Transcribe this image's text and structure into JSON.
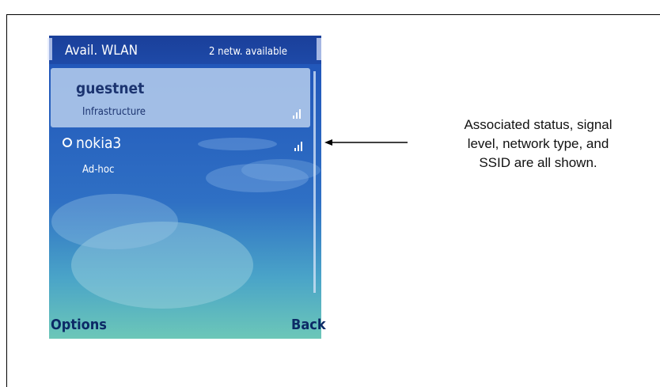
{
  "header": {
    "title": "Avail. WLAN",
    "status": "2 netw. available"
  },
  "networks": [
    {
      "name": "guestnet",
      "type": "Infrastructure"
    },
    {
      "name": "nokia3",
      "type": "Ad-hoc"
    }
  ],
  "softkeys": {
    "left": "Options",
    "right": "Back"
  },
  "annotation": {
    "lines": [
      "Associated status, signal",
      "level, network type, and",
      "SSID are all shown."
    ]
  }
}
